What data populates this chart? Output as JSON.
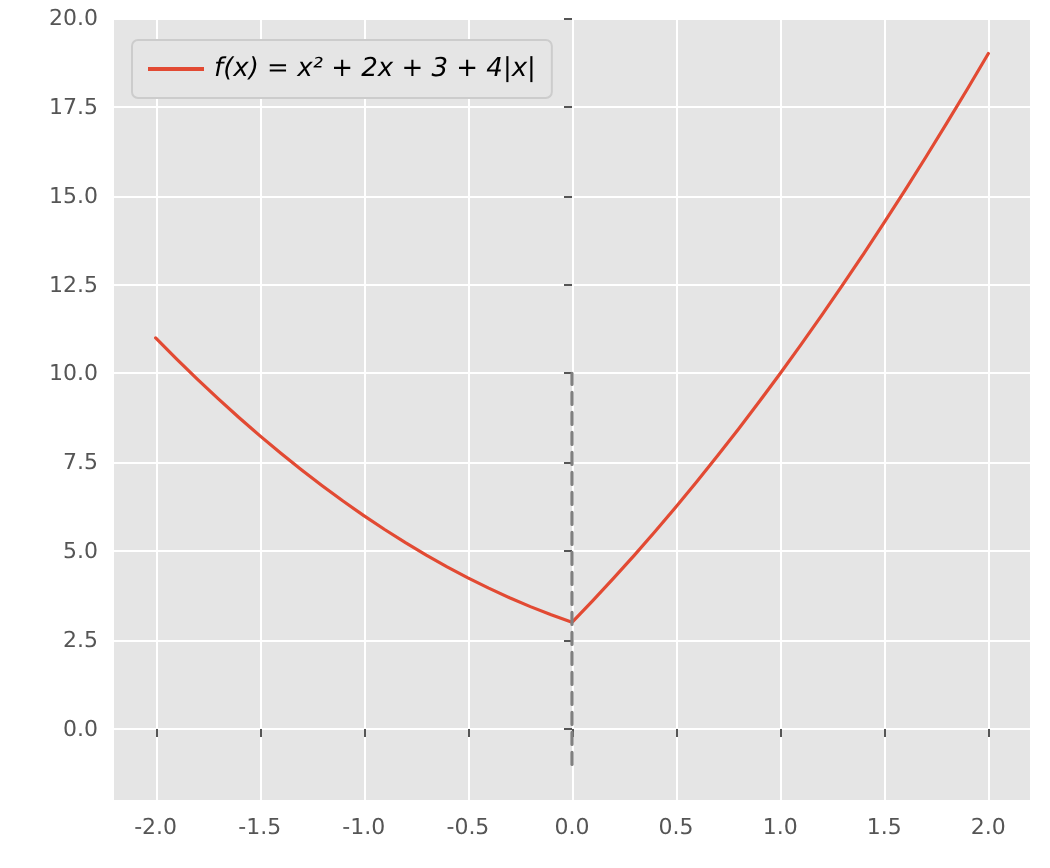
{
  "chart_data": {
    "type": "line",
    "series": [
      {
        "name": "f(x) = x² + 2x + 3 + 4|x|",
        "color": "#e24a33",
        "marker": "none",
        "line_style": "solid",
        "x": [
          -2,
          -1.9,
          -1.8,
          -1.7,
          -1.6,
          -1.5,
          -1.4,
          -1.3,
          -1.2,
          -1.1,
          -1,
          -0.9,
          -0.8,
          -0.7,
          -0.6,
          -0.5,
          -0.4,
          -0.3,
          -0.2,
          -0.1,
          0,
          0.1,
          0.2,
          0.3,
          0.4,
          0.5,
          0.6,
          0.7,
          0.8,
          0.9,
          1,
          1.1,
          1.2,
          1.3,
          1.4,
          1.5,
          1.6,
          1.7,
          1.8,
          1.9,
          2
        ],
        "values": [
          11,
          10.41,
          9.84,
          9.29,
          8.76,
          8.25,
          7.76,
          7.29,
          6.84,
          6.41,
          6,
          5.61,
          5.24,
          4.89,
          4.56,
          4.25,
          3.96,
          3.69,
          3.44,
          3.21,
          3,
          3.61,
          4.24,
          4.89,
          5.56,
          6.25,
          6.96,
          7.69,
          8.44,
          9.21,
          10,
          10.81,
          11.64,
          12.49,
          13.36,
          14.25,
          15.16,
          16.09,
          17.04,
          18.01,
          19
        ]
      },
      {
        "color": "#808080",
        "marker": "none",
        "line_style": "dashed",
        "x": [
          0,
          0
        ],
        "values": [
          -1,
          10
        ]
      }
    ],
    "xlim": [
      -2.2,
      2.2
    ],
    "xticks": [
      {
        "value": -2,
        "label": "-2.0"
      },
      {
        "value": -1.5,
        "label": "-1.5"
      },
      {
        "value": -1,
        "label": "-1.0"
      },
      {
        "value": -0.5,
        "label": "-0.5"
      },
      {
        "value": 0,
        "label": "0.0"
      },
      {
        "value": 0.5,
        "label": "0.5"
      },
      {
        "value": 1,
        "label": "1.0"
      },
      {
        "value": 1.5,
        "label": "1.5"
      },
      {
        "value": 2,
        "label": "2.0"
      }
    ],
    "ylim": [
      -2,
      20
    ],
    "yticks": [
      {
        "value": 0,
        "label": "0.0"
      },
      {
        "value": 2.5,
        "label": "2.5"
      },
      {
        "value": 5,
        "label": "5.0"
      },
      {
        "value": 7.5,
        "label": "7.5"
      },
      {
        "value": 10,
        "label": "10.0"
      },
      {
        "value": 12.5,
        "label": "12.5"
      },
      {
        "value": 15,
        "label": "15.0"
      },
      {
        "value": 17.5,
        "label": "17.5"
      },
      {
        "value": 20,
        "label": "20.0"
      }
    ],
    "grid": true,
    "legend": "top left"
  }
}
